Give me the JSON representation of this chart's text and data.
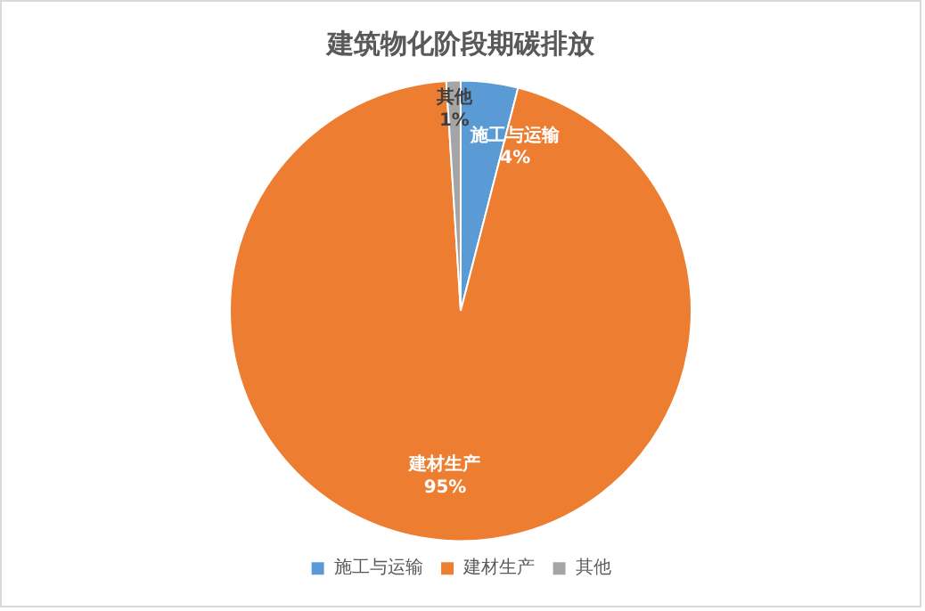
{
  "chart_data": {
    "type": "pie",
    "title": "建筑物化阶段期碳排放",
    "categories": [
      "施工与运输",
      "建材生产",
      "其他"
    ],
    "values": [
      4,
      95,
      1
    ],
    "colors": [
      "#5b9bd5",
      "#ed7d31",
      "#a5a5a5"
    ],
    "value_labels": [
      "4%",
      "95%",
      "1%"
    ],
    "legend": "bottom"
  }
}
